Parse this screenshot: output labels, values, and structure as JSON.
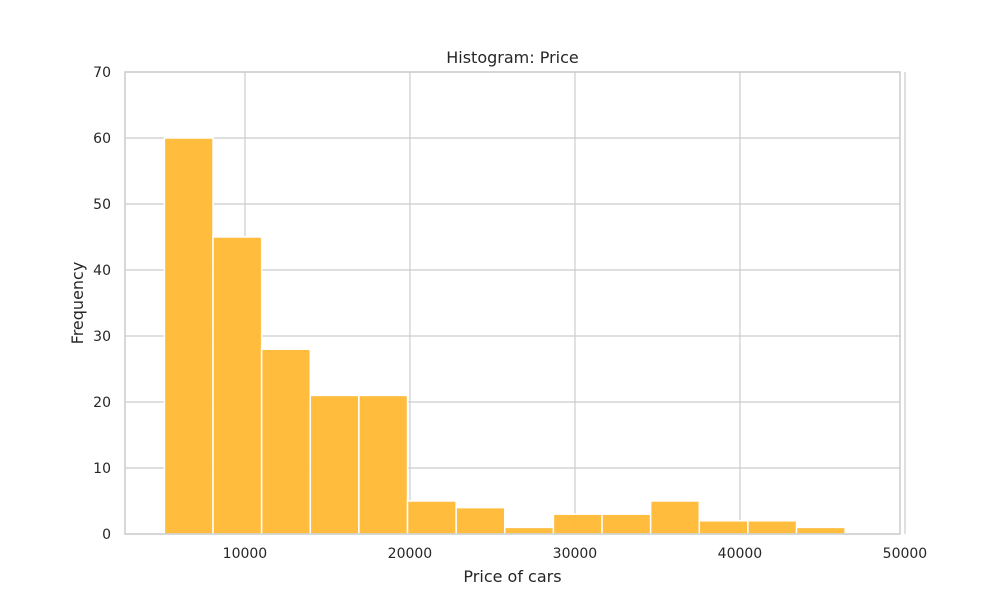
{
  "chart_data": {
    "type": "bar",
    "title": "Histogram: Price",
    "xlabel": "Price of cars",
    "ylabel": "Frequency",
    "xlim": [
      2730,
      49700
    ],
    "ylim": [
      0,
      70
    ],
    "xticks": [
      10000,
      20000,
      30000,
      40000,
      50000
    ],
    "yticks": [
      0,
      10,
      20,
      30,
      40,
      50,
      60,
      70
    ],
    "grid": true,
    "bar_color": "#FFB833",
    "bins": [
      {
        "x0": 5118,
        "x1": 8065,
        "count": 60
      },
      {
        "x0": 8065,
        "x1": 11012,
        "count": 45
      },
      {
        "x0": 11012,
        "x1": 13959,
        "count": 28
      },
      {
        "x0": 13959,
        "x1": 16906,
        "count": 21
      },
      {
        "x0": 16906,
        "x1": 19853,
        "count": 21
      },
      {
        "x0": 19853,
        "x1": 22800,
        "count": 5
      },
      {
        "x0": 22800,
        "x1": 25747,
        "count": 4
      },
      {
        "x0": 25747,
        "x1": 28694,
        "count": 1
      },
      {
        "x0": 28694,
        "x1": 31641,
        "count": 3
      },
      {
        "x0": 31641,
        "x1": 34588,
        "count": 3
      },
      {
        "x0": 34588,
        "x1": 37535,
        "count": 5
      },
      {
        "x0": 37535,
        "x1": 40482,
        "count": 2
      },
      {
        "x0": 40482,
        "x1": 43429,
        "count": 2
      },
      {
        "x0": 43429,
        "x1": 46376,
        "count": 1
      },
      {
        "x0": 46376,
        "x1": 49323,
        "count": 0
      }
    ]
  }
}
